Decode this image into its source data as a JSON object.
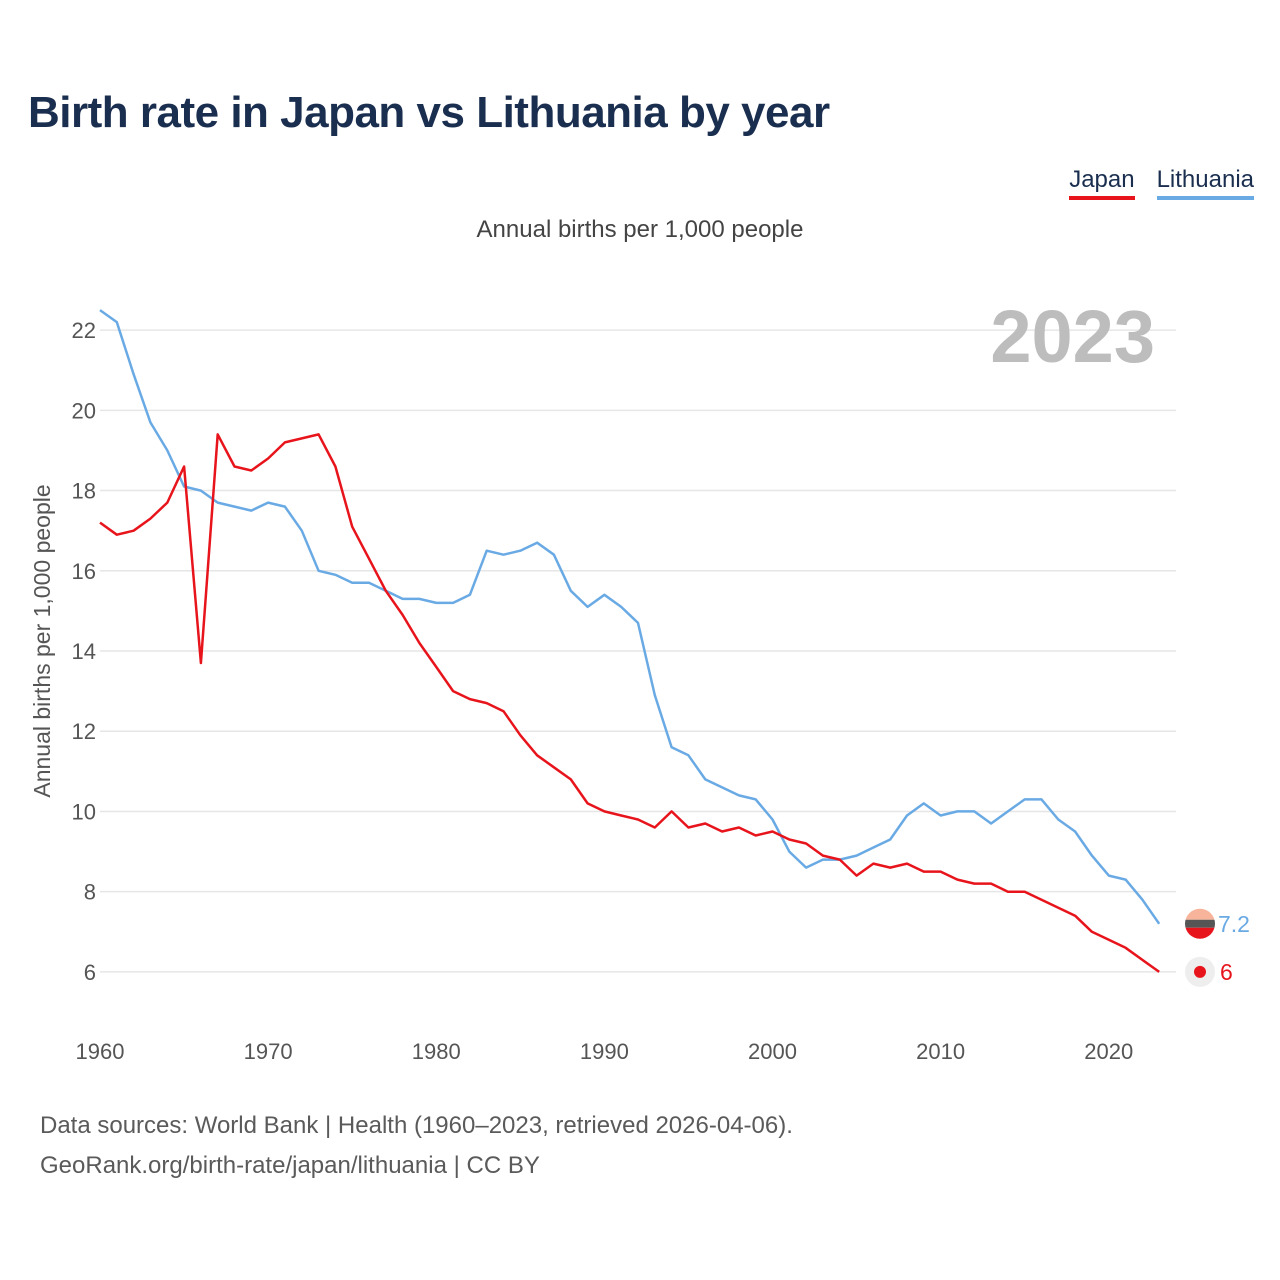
{
  "chart_data": {
    "type": "line",
    "title": "Birth rate in Japan vs Lithuania by year",
    "subtitle": "Annual births per 1,000 people",
    "ylabel": "Annual births per 1,000 people",
    "xlabel": "",
    "year_label": "2023",
    "xlim": [
      1960,
      2024
    ],
    "ylim": [
      5,
      23
    ],
    "x_ticks": [
      1960,
      1970,
      1980,
      1990,
      2000,
      2010,
      2020
    ],
    "y_ticks": [
      6,
      8,
      10,
      12,
      14,
      16,
      18,
      20,
      22
    ],
    "grid": true,
    "legend_position": "top-right",
    "x": [
      1960,
      1961,
      1962,
      1963,
      1964,
      1965,
      1966,
      1967,
      1968,
      1969,
      1970,
      1971,
      1972,
      1973,
      1974,
      1975,
      1976,
      1977,
      1978,
      1979,
      1980,
      1981,
      1982,
      1983,
      1984,
      1985,
      1986,
      1987,
      1988,
      1989,
      1990,
      1991,
      1992,
      1993,
      1994,
      1995,
      1996,
      1997,
      1998,
      1999,
      2000,
      2001,
      2002,
      2003,
      2004,
      2005,
      2006,
      2007,
      2008,
      2009,
      2010,
      2011,
      2012,
      2013,
      2014,
      2015,
      2016,
      2017,
      2018,
      2019,
      2020,
      2021,
      2022,
      2023
    ],
    "series": [
      {
        "name": "Japan",
        "color": "#e8141c",
        "end_label": "6",
        "values": [
          17.2,
          16.9,
          17.0,
          17.3,
          17.7,
          18.6,
          13.7,
          19.4,
          18.6,
          18.5,
          18.8,
          19.2,
          19.3,
          19.4,
          18.6,
          17.1,
          16.3,
          15.5,
          14.9,
          14.2,
          13.6,
          13.0,
          12.8,
          12.7,
          12.5,
          11.9,
          11.4,
          11.1,
          10.8,
          10.2,
          10.0,
          9.9,
          9.8,
          9.6,
          10.0,
          9.6,
          9.7,
          9.5,
          9.6,
          9.4,
          9.5,
          9.3,
          9.2,
          8.9,
          8.8,
          8.4,
          8.7,
          8.6,
          8.7,
          8.5,
          8.5,
          8.3,
          8.2,
          8.2,
          8.0,
          8.0,
          7.8,
          7.6,
          7.4,
          7.0,
          6.8,
          6.6,
          6.3,
          6.0
        ]
      },
      {
        "name": "Lithuania",
        "color": "#6aaae4",
        "end_label": "7.2",
        "values": [
          22.5,
          22.2,
          20.9,
          19.7,
          19.0,
          18.1,
          18.0,
          17.7,
          17.6,
          17.5,
          17.7,
          17.6,
          17.0,
          16.0,
          15.9,
          15.7,
          15.7,
          15.5,
          15.3,
          15.3,
          15.2,
          15.2,
          15.4,
          16.5,
          16.4,
          16.5,
          16.7,
          16.4,
          15.5,
          15.1,
          15.4,
          15.1,
          14.7,
          12.9,
          11.6,
          11.4,
          10.8,
          10.6,
          10.4,
          10.3,
          9.8,
          9.0,
          8.6,
          8.8,
          8.8,
          8.9,
          9.1,
          9.3,
          9.9,
          10.2,
          9.9,
          10.0,
          10.0,
          9.7,
          10.0,
          10.3,
          10.3,
          9.8,
          9.5,
          8.9,
          8.4,
          8.3,
          7.8,
          7.2
        ]
      }
    ]
  },
  "source": {
    "line1": "Data sources: World Bank | Health (1960–2023, retrieved 2026-04-06).",
    "line2": "GeoRank.org/birth-rate/japan/lithuania | CC BY"
  }
}
